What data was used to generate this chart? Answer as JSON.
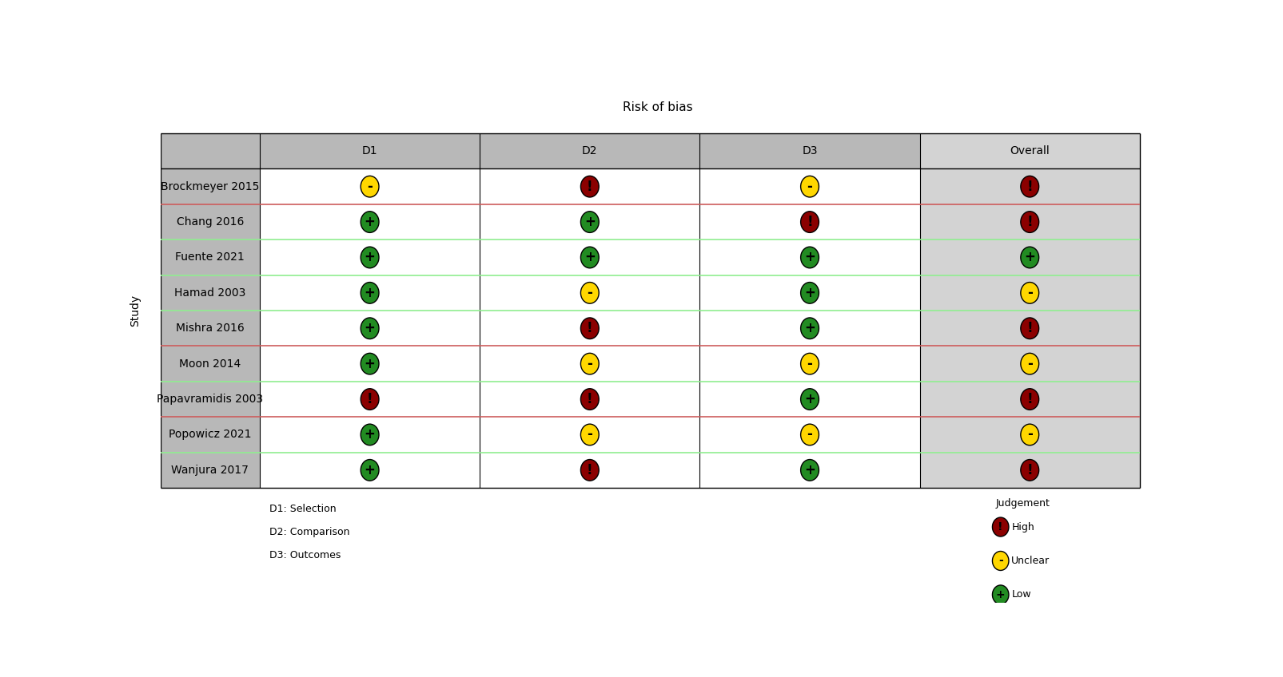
{
  "title": "Risk of bias",
  "ylabel": "Study",
  "columns": [
    "D1",
    "D2",
    "D3",
    "Overall"
  ],
  "studies": [
    "Brockmeyer 2015",
    "Chang 2016",
    "Fuente 2021",
    "Hamad 2003",
    "Mishra 2016",
    "Moon 2014",
    "Papavramidis 2003",
    "Popowicz 2021",
    "Wanjura 2017"
  ],
  "data": [
    [
      "unclear",
      "high",
      "unclear",
      "high"
    ],
    [
      "low",
      "low",
      "high",
      "high"
    ],
    [
      "low",
      "low",
      "low",
      "low"
    ],
    [
      "low",
      "unclear",
      "low",
      "unclear"
    ],
    [
      "low",
      "high",
      "low",
      "high"
    ],
    [
      "low",
      "unclear",
      "unclear",
      "unclear"
    ],
    [
      "high",
      "high",
      "low",
      "high"
    ],
    [
      "low",
      "unclear",
      "unclear",
      "unclear"
    ],
    [
      "low",
      "high",
      "low",
      "high"
    ]
  ],
  "colors": {
    "high": "#8B0000",
    "unclear": "#FFD700",
    "low": "#228B22"
  },
  "symbols": {
    "high": "!",
    "unclear": "-",
    "low": "+"
  },
  "row_separator_colors": [
    "#CD5C5C",
    "#90EE90",
    "#90EE90",
    "#90EE90",
    "#CD5C5C",
    "#90EE90",
    "#CD5C5C",
    "#90EE90",
    "#90EE90"
  ],
  "footnote_lines": [
    "D1: Selection",
    "D2: Comparison",
    "D3: Outcomes"
  ],
  "legend_title": "Judgement",
  "legend_items": [
    "High",
    "Unclear",
    "Low"
  ],
  "legend_judgments": [
    "high",
    "unclear",
    "low"
  ],
  "study_col_bg": "#B8B8B8",
  "header_bg": "#B8B8B8",
  "overall_col_bg": "#D3D3D3",
  "data_col_bg": "#FFFFFF",
  "title_fontsize": 11,
  "label_fontsize": 10,
  "cell_fontsize": 10,
  "footnote_fontsize": 9,
  "legend_fontsize": 9
}
